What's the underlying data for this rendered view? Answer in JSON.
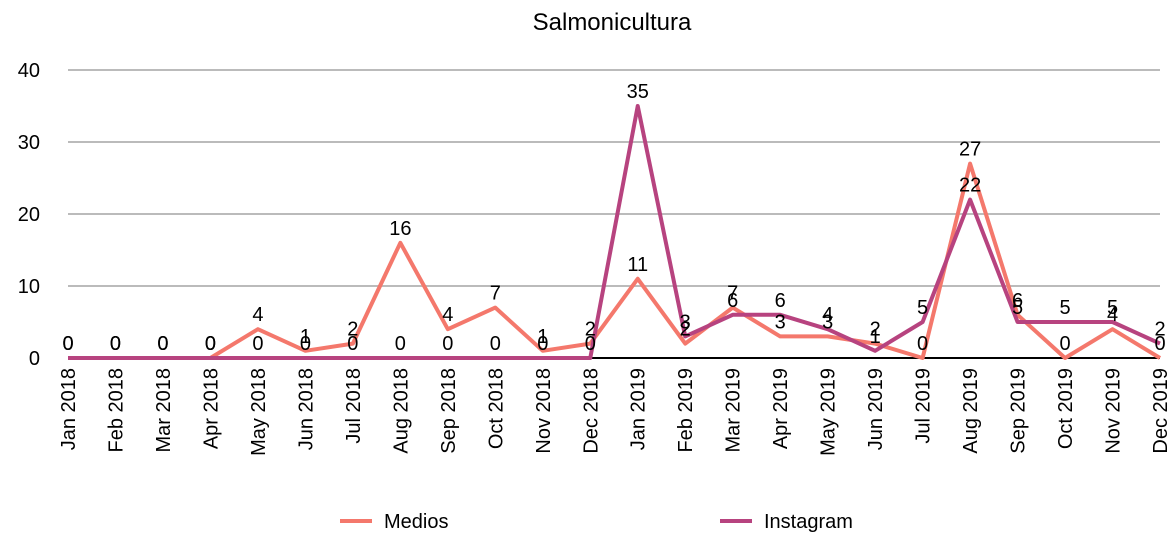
{
  "chart_data": {
    "type": "line",
    "title": "Salmonicultura",
    "categories": [
      "Jan 2018",
      "Feb 2018",
      "Mar 2018",
      "Apr 2018",
      "May 2018",
      "Jun 2018",
      "Jul 2018",
      "Aug 2018",
      "Sep 2018",
      "Oct 2018",
      "Nov 2018",
      "Dec 2018",
      "Jan 2019",
      "Feb 2019",
      "Mar 2019",
      "Apr 2019",
      "May 2019",
      "Jun 2019",
      "Jul 2019",
      "Aug 2019",
      "Sep 2019",
      "Oct 2019",
      "Nov 2019",
      "Dec 2019"
    ],
    "series": [
      {
        "name": "Medios",
        "color": "#f4786c",
        "values": [
          0,
          0,
          0,
          0,
          4,
          1,
          2,
          16,
          4,
          7,
          1,
          2,
          11,
          2,
          7,
          3,
          3,
          2,
          0,
          27,
          6,
          0,
          4,
          0
        ]
      },
      {
        "name": "Instagram",
        "color": "#b7437f",
        "values": [
          0,
          0,
          0,
          0,
          0,
          0,
          0,
          0,
          0,
          0,
          0,
          0,
          35,
          3,
          6,
          6,
          4,
          1,
          5,
          22,
          5,
          5,
          5,
          2
        ]
      }
    ],
    "ylim": [
      0,
      40
    ],
    "yticks": [
      0,
      10,
      20,
      30,
      40
    ],
    "grid": true,
    "legend": "bottom"
  }
}
